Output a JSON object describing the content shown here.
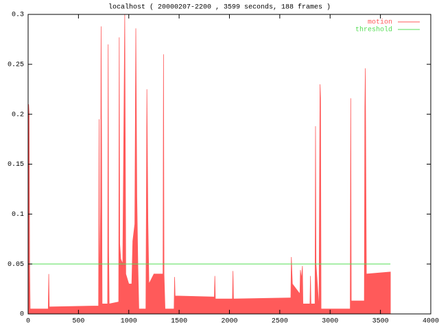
{
  "chart_data": {
    "type": "area",
    "title": "localhost ( 20000207-2200 , 3599 seconds, 188 frames )",
    "xlim": [
      0,
      4000
    ],
    "xticks": [
      0,
      500,
      1000,
      1500,
      2000,
      2500,
      3000,
      3500,
      4000
    ],
    "ylim": [
      0,
      0.3
    ],
    "yticks": [
      0,
      0.05,
      0.1,
      0.15,
      0.2,
      0.25,
      0.3
    ],
    "legend": "top-right",
    "series": [
      {
        "name": "motion",
        "color": "#ff5a5a",
        "fill": true,
        "x": [
          0,
          5,
          10,
          15,
          20,
          200,
          205,
          210,
          700,
          705,
          710,
          720,
          725,
          730,
          735,
          790,
          795,
          800,
          805,
          900,
          905,
          910,
          920,
          940,
          960,
          970,
          1000,
          1030,
          1040,
          1060,
          1070,
          1080,
          1090,
          1100,
          1170,
          1180,
          1190,
          1200,
          1250,
          1300,
          1340,
          1345,
          1350,
          1360,
          1450,
          1455,
          1460,
          1850,
          1855,
          1860,
          2030,
          2035,
          2040,
          2600,
          2610,
          2615,
          2625,
          2700,
          2705,
          2715,
          2725,
          2730,
          2800,
          2805,
          2810,
          2850,
          2855,
          2860,
          2890,
          2895,
          2900,
          2905,
          2910,
          3200,
          3205,
          3210,
          3340,
          3345,
          3350,
          3360,
          3599
        ],
        "values": [
          0.11,
          0.21,
          0.2,
          0.05,
          0.005,
          0.005,
          0.04,
          0.007,
          0.008,
          0.195,
          0.01,
          0.108,
          0.288,
          0.17,
          0.01,
          0.01,
          0.27,
          0.065,
          0.01,
          0.012,
          0.277,
          0.07,
          0.055,
          0.05,
          0.3,
          0.04,
          0.03,
          0.03,
          0.073,
          0.09,
          0.286,
          0.117,
          0.05,
          0.005,
          0.005,
          0.225,
          0.093,
          0.03,
          0.04,
          0.04,
          0.04,
          0.26,
          0.04,
          0.005,
          0.005,
          0.037,
          0.018,
          0.017,
          0.038,
          0.015,
          0.015,
          0.043,
          0.015,
          0.016,
          0.016,
          0.057,
          0.03,
          0.02,
          0.044,
          0.035,
          0.048,
          0.01,
          0.01,
          0.038,
          0.01,
          0.01,
          0.188,
          0.05,
          0.005,
          0.127,
          0.23,
          0.216,
          0.005,
          0.005,
          0.216,
          0.013,
          0.013,
          0.206,
          0.246,
          0.04,
          0.042
        ]
      },
      {
        "name": "threshold",
        "color": "#55dd55",
        "fill": false,
        "x": [
          0,
          3599
        ],
        "values": [
          0.05,
          0.05
        ]
      }
    ]
  }
}
